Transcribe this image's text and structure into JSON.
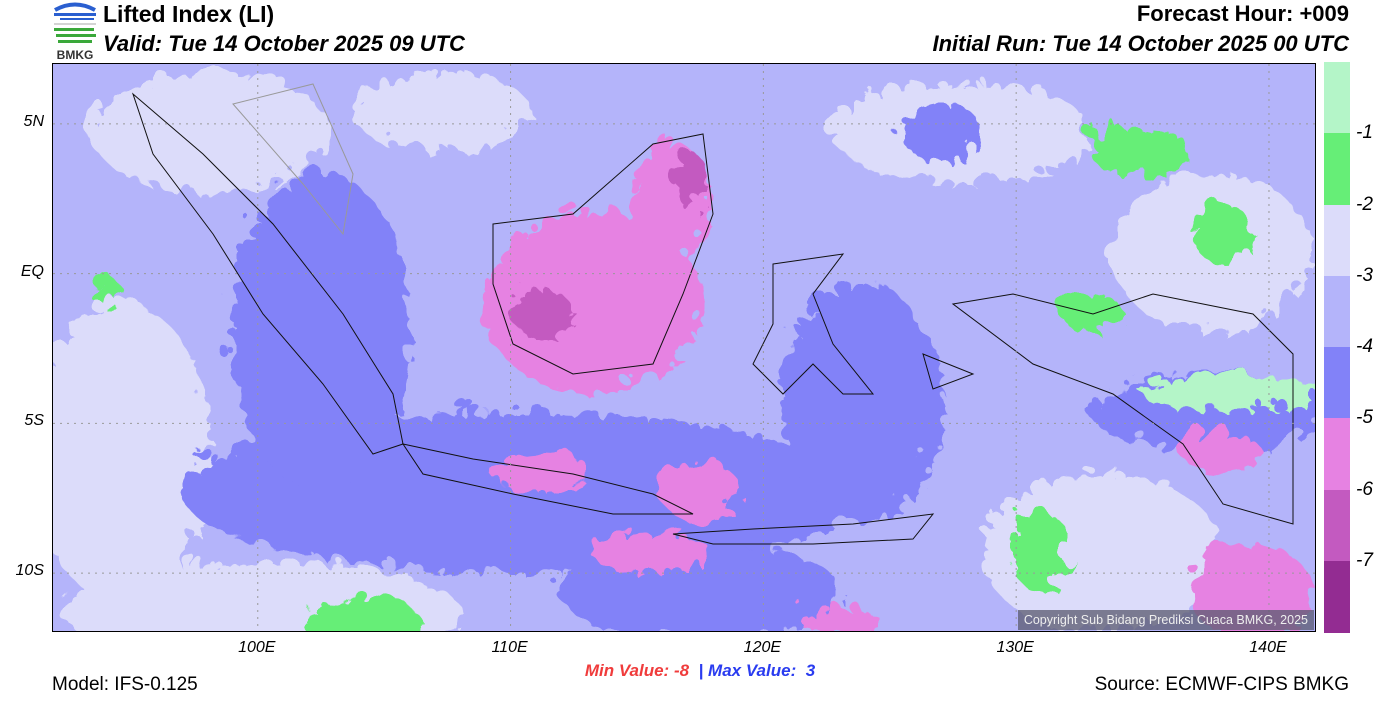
{
  "header": {
    "title": "Lifted Index (LI)",
    "valid": "Valid: Tue 14 October 2025 09 UTC",
    "forecast_hour": "Forecast Hour: +009",
    "initial_run": "Initial Run: Tue 14 October 2025 00 UTC",
    "logo_text": "BMKG"
  },
  "map": {
    "lat_ticks": [
      {
        "lat": 5,
        "label": "5N"
      },
      {
        "lat": 0,
        "label": "EQ"
      },
      {
        "lat": -5,
        "label": "5S"
      },
      {
        "lat": -10,
        "label": "10S"
      }
    ],
    "lon_ticks": [
      {
        "lon": 100,
        "label": "100E"
      },
      {
        "lon": 110,
        "label": "110E"
      },
      {
        "lon": 120,
        "label": "120E"
      },
      {
        "lon": 130,
        "label": "130E"
      },
      {
        "lon": 140,
        "label": "140E"
      }
    ],
    "lon_range": [
      91.9,
      141.9
    ],
    "lat_range": [
      -12,
      7
    ],
    "copyright": "Copyright Sub Bidang Prediksi Cuaca BMKG, 2025"
  },
  "colorbar": {
    "colors": [
      "#b4f5c8",
      "#66ee77",
      "#dcdcfa",
      "#b4b4fa",
      "#8282f8",
      "#e682e2",
      "#c35ac0",
      "#932c92"
    ],
    "labels": [
      "-1",
      "-2",
      "-3",
      "-4",
      "-5",
      "-6",
      "-7"
    ]
  },
  "stats": {
    "min_label": "Min Value:",
    "min_value": "-8",
    "separator": "|",
    "max_label": "Max Value:",
    "max_value": "3"
  },
  "footer": {
    "model": "Model: IFS-0.125",
    "source": "Source: ECMWF-CIPS BMKG"
  }
}
